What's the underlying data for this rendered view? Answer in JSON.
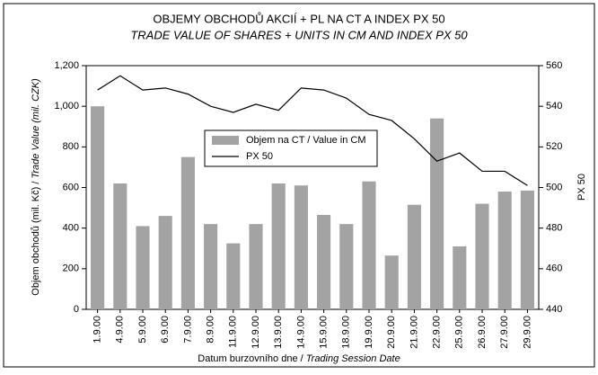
{
  "chart_data": {
    "type": "bar_line",
    "title": "OBJEMY OBCHODŮ AKCIÍ + PL NA CT A INDEX PX 50",
    "subtitle": "TRADE VALUE OF SHARES + UNITS IN CM AND INDEX PX 50",
    "ylabel": {
      "cs": "Objem obchodů (mil. Kč) /",
      "en": "Trade Value (mil. CZK)"
    },
    "y2label": "PX 50",
    "xlabel": {
      "cs": "Datum burzovního dne /",
      "en": "Trading Session Date"
    },
    "categories": [
      "1.9.00",
      "4.9.00",
      "5.9.00",
      "6.9.00",
      "7.9.00",
      "8.9.00",
      "11.9.00",
      "12.9.00",
      "13.9.00",
      "14.9.00",
      "15.9.00",
      "18.9.00",
      "19.9.00",
      "20.9.00",
      "21.9.00",
      "22.9.00",
      "25.9.00",
      "26.9.00",
      "27.9.00",
      "29.9.00"
    ],
    "series": [
      {
        "name": "Objem na CT / Value in CM",
        "color": "#a3a3a3",
        "kind": "bar",
        "values": [
          1000,
          620,
          410,
          460,
          750,
          420,
          325,
          420,
          620,
          610,
          465,
          420,
          630,
          265,
          515,
          940,
          310,
          520,
          580,
          585
        ]
      },
      {
        "name": "PX 50",
        "color": "#000000",
        "kind": "line",
        "axis": "y2",
        "values": [
          548,
          555,
          548,
          549,
          546,
          540,
          537,
          541,
          538,
          549,
          548,
          544,
          536,
          533,
          524,
          513,
          517,
          508,
          508,
          501
        ]
      }
    ],
    "ylim": [
      0,
      1200
    ],
    "yticks": [
      0,
      200,
      400,
      600,
      800,
      {
        "value": 1000,
        "label": "1,000"
      },
      {
        "value": 1200,
        "label": "1,200"
      }
    ],
    "y2lim": [
      440,
      560
    ],
    "y2ticks": [
      440,
      460,
      480,
      500,
      520,
      540,
      560
    ]
  }
}
